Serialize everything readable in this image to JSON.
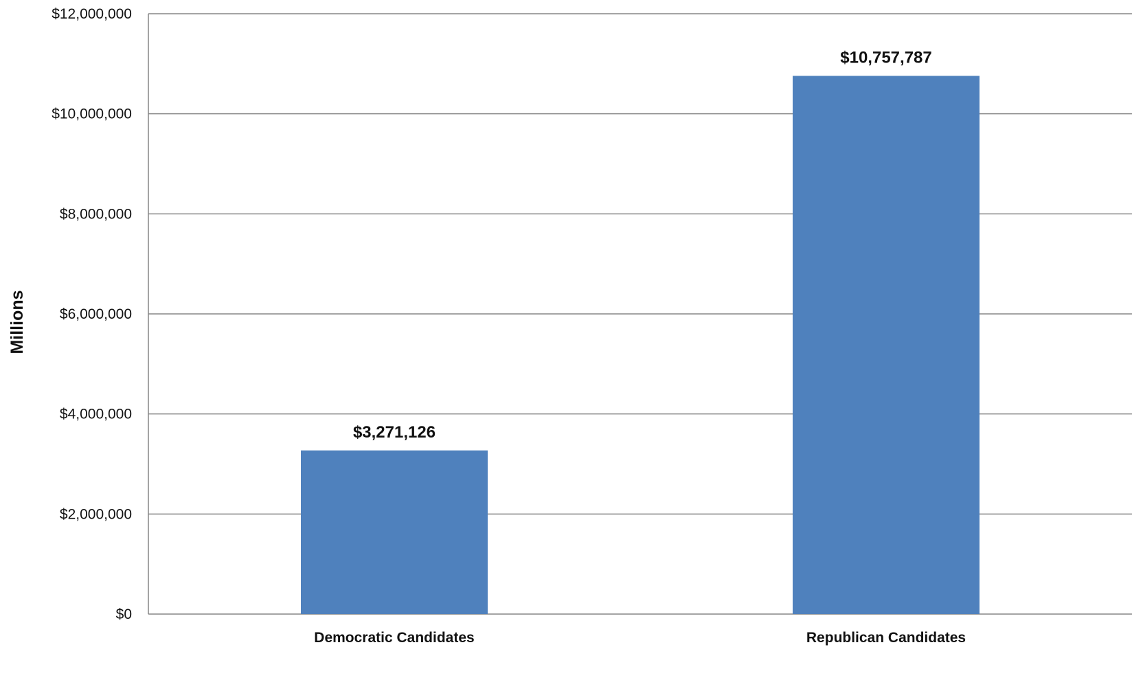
{
  "chart_data": {
    "type": "bar",
    "categories": [
      "Democratic Candidates",
      "Republican Candidates"
    ],
    "values": [
      3271126,
      10757787
    ],
    "data_labels": [
      "$3,271,126",
      "$10,757,787"
    ],
    "ylabel": "Millions",
    "xlabel": "",
    "ylim": [
      0,
      12000000
    ],
    "yticks": [
      0,
      2000000,
      4000000,
      6000000,
      8000000,
      10000000,
      12000000
    ],
    "ytick_labels": [
      "$0",
      "$2,000,000",
      "$4,000,000",
      "$6,000,000",
      "$8,000,000",
      "$10,000,000",
      "$12,000,000"
    ],
    "grid": true,
    "legend": "none",
    "bar_color": "#4F81BD",
    "grid_color": "#868686"
  }
}
